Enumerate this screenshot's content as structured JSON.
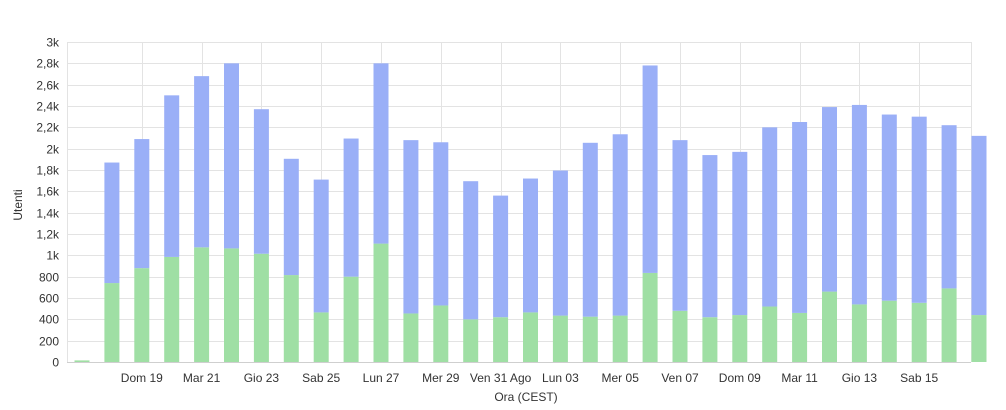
{
  "chart_data": {
    "type": "bar",
    "stacked": true,
    "xlabel": "Ora (CEST)",
    "ylabel": "Utenti",
    "ylim": [
      0,
      3000
    ],
    "yticks": [
      0,
      200,
      400,
      600,
      800,
      1000,
      1200,
      1400,
      1600,
      1800,
      2000,
      2200,
      2400,
      2600,
      2800,
      3000
    ],
    "ytick_labels": [
      "0",
      "200",
      "400",
      "600",
      "800",
      "1k",
      "1,2k",
      "1,4k",
      "1,6k",
      "1,8k",
      "2k",
      "2,2k",
      "2,4k",
      "2,6k",
      "2,8k",
      "3k"
    ],
    "grid": true,
    "legend": "none",
    "xtick_labels": [
      {
        "index": 2,
        "label": "Dom 19"
      },
      {
        "index": 4,
        "label": "Mar 21"
      },
      {
        "index": 6,
        "label": "Gio 23"
      },
      {
        "index": 8,
        "label": "Sab 25"
      },
      {
        "index": 10,
        "label": "Lun 27"
      },
      {
        "index": 12,
        "label": "Mer 29"
      },
      {
        "index": 14,
        "label": "Ven 31 Ago"
      },
      {
        "index": 16,
        "label": "Lun 03"
      },
      {
        "index": 18,
        "label": "Mer 05"
      },
      {
        "index": 20,
        "label": "Ven 07"
      },
      {
        "index": 22,
        "label": "Dom 09"
      },
      {
        "index": 24,
        "label": "Mar 11"
      },
      {
        "index": 26,
        "label": "Gio 13"
      },
      {
        "index": 28,
        "label": "Sab 15"
      }
    ],
    "series": [
      {
        "color": "#9fdfa4",
        "values": [
          15,
          740,
          880,
          985,
          1075,
          1065,
          1015,
          815,
          465,
          800,
          1110,
          455,
          530,
          400,
          420,
          465,
          435,
          425,
          435,
          835,
          480,
          420,
          440,
          520,
          460,
          660,
          540,
          575,
          555,
          690,
          440
        ]
      },
      {
        "color": "#9aaff7",
        "values": [
          0,
          1130,
          1210,
          1515,
          1605,
          1735,
          1355,
          1090,
          1245,
          1295,
          1690,
          1625,
          1530,
          1295,
          1140,
          1255,
          1360,
          1630,
          1700,
          1945,
          1600,
          1520,
          1530,
          1680,
          1790,
          1730,
          1870,
          1745,
          1745,
          1530,
          1680
        ]
      }
    ]
  }
}
